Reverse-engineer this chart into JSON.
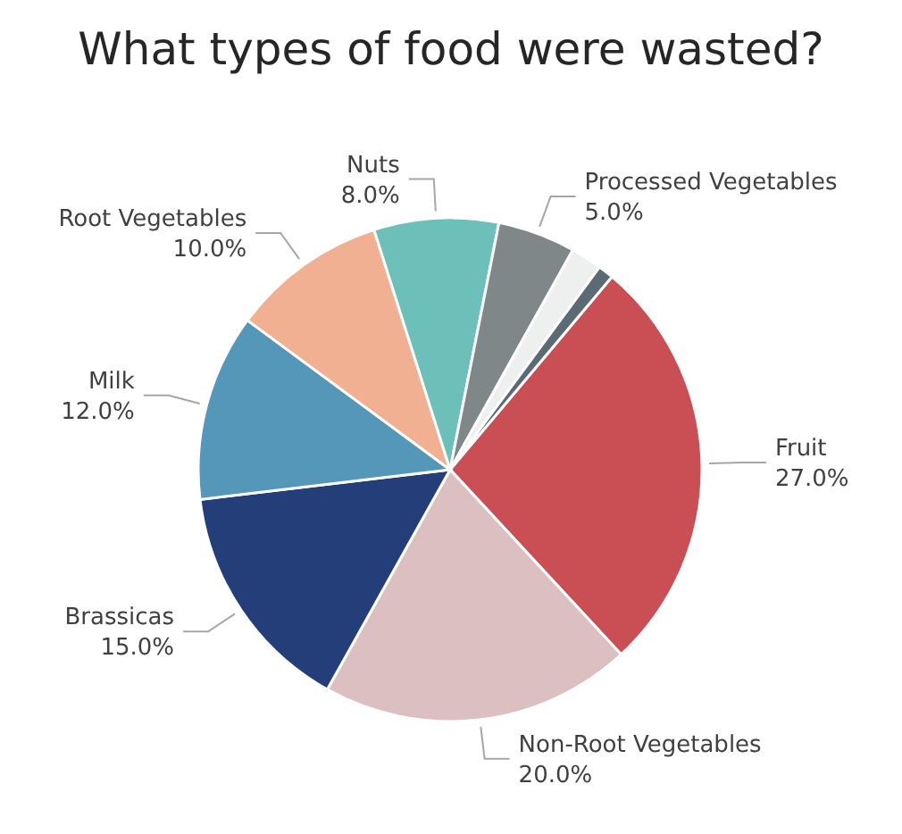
{
  "chart_data": {
    "type": "pie",
    "title": "What types of food were wasted?",
    "categories": [
      "Fruit",
      "Non-Root Vegetables",
      "Brassicas",
      "Milk",
      "Root Vegetables",
      "Nuts",
      "Processed Vegetables",
      null,
      null
    ],
    "values": [
      27,
      20,
      15,
      12,
      10,
      8,
      5,
      2,
      1
    ],
    "value_labels": [
      "27.0%",
      "20.0%",
      "15.0%",
      "12.0%",
      "10.0%",
      "8.0%",
      "5.0%",
      null,
      null
    ],
    "colors": [
      "#c94f54",
      "#dcbfc0",
      "#243e7a",
      "#5597b8",
      "#f0b091",
      "#6cc0b9",
      "#7f8788",
      "#eef0f0",
      "#5a6b73"
    ],
    "legend": false
  }
}
